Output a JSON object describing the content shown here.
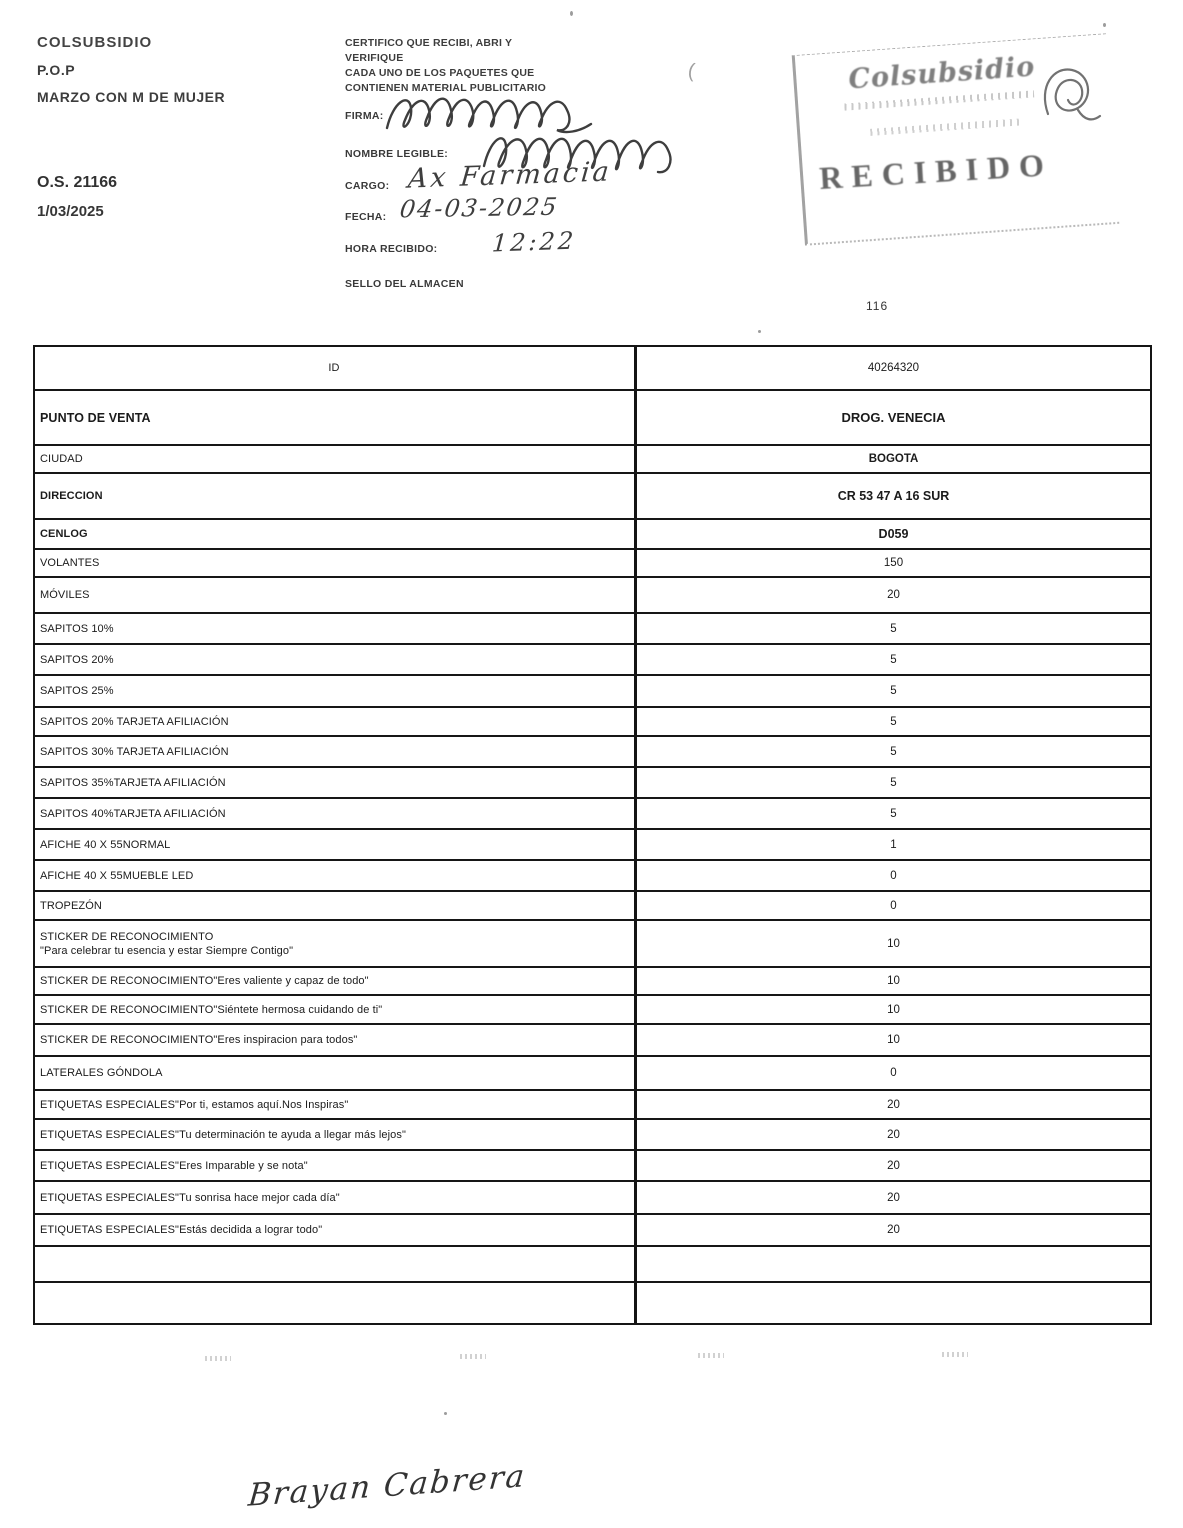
{
  "page_number": "116",
  "header_left": {
    "brand": "COLSUBSIDIO",
    "pop": "P.O.P",
    "campaign": "MARZO CON M DE MUJER",
    "order_number": "O.S. 21166",
    "order_date": "1/03/2025"
  },
  "certification": {
    "statement_lines": [
      "CERTIFICO QUE RECIBI, ABRI Y",
      "VERIFIQUE",
      "CADA  UNO DE LOS PAQUETES QUE",
      "CONTIENEN MATERIAL PUBLICITARIO"
    ],
    "fields": [
      {
        "label": "FIRMA:"
      },
      {
        "label": "NOMBRE LEGIBLE:"
      },
      {
        "label": "CARGO:"
      },
      {
        "label": "FECHA:"
      },
      {
        "label": "HORA RECIBIDO:"
      },
      {
        "label": "SELLO DEL ALMACEN"
      }
    ]
  },
  "handwriting": {
    "cargo": "Ax Farmacia",
    "fecha": "04-03-2025",
    "hora_recibido": "12:22",
    "footer_name": "Brayan Cabrera"
  },
  "stamp": {
    "brand": "Colsubsidio",
    "status": "RECIBIDO"
  },
  "table": {
    "rows": [
      {
        "label": "ID",
        "value": "40264320"
      },
      {
        "label": "PUNTO DE VENTA",
        "value": "DROG. VENECIA"
      },
      {
        "label": "CIUDAD",
        "value": "BOGOTA"
      },
      {
        "label": "DIRECCION",
        "value": "CR 53 47 A 16 SUR"
      },
      {
        "label": "CENLOG",
        "value": "D059"
      },
      {
        "label": "VOLANTES",
        "value": "150"
      },
      {
        "label": "MÓVILES",
        "value": "20"
      },
      {
        "label": "SAPITOS 10%",
        "value": "5"
      },
      {
        "label": "SAPITOS 20%",
        "value": "5"
      },
      {
        "label": "SAPITOS 25%",
        "value": "5"
      },
      {
        "label": "SAPITOS 20% TARJETA AFILIACIÓN",
        "value": "5"
      },
      {
        "label": "SAPITOS 30% TARJETA AFILIACIÓN",
        "value": "5"
      },
      {
        "label": "SAPITOS 35%TARJETA AFILIACIÓN",
        "value": "5"
      },
      {
        "label": "SAPITOS 40%TARJETA AFILIACIÓN",
        "value": "5"
      },
      {
        "label": "AFICHE 40 X 55NORMAL",
        "value": "1"
      },
      {
        "label": "AFICHE 40 X 55MUEBLE LED",
        "value": "0"
      },
      {
        "label": "TROPEZÓN",
        "value": "0"
      },
      {
        "label": "STICKER DE RECONOCIMIENTO",
        "label2": "\"Para celebrar tu esencia y estar Siempre Contigo\"",
        "value": "10"
      },
      {
        "label": "STICKER DE RECONOCIMIENTO\"Eres valiente y capaz de todo\"",
        "value": "10"
      },
      {
        "label": "STICKER DE RECONOCIMIENTO\"Siéntete hermosa cuidando de ti\"",
        "value": "10"
      },
      {
        "label": "STICKER DE RECONOCIMIENTO\"Eres inspiracion para todos\"",
        "value": "10"
      },
      {
        "label": "LATERALES GÓNDOLA",
        "value": "0"
      },
      {
        "label": "ETIQUETAS ESPECIALES\"Por ti, estamos aquí.Nos Inspiras\"",
        "value": "20"
      },
      {
        "label": "ETIQUETAS ESPECIALES\"Tu determinación te ayuda a llegar más lejos\"",
        "value": "20"
      },
      {
        "label": "ETIQUETAS ESPECIALES\"Eres Imparable y se nota\"",
        "value": "20"
      },
      {
        "label": "ETIQUETAS ESPECIALES\"Tu sonrisa hace mejor cada día\"",
        "value": "20"
      },
      {
        "label": "ETIQUETAS ESPECIALES\"Estás decidida a lograr todo\"",
        "value": "20"
      },
      {
        "label": "",
        "value": ""
      },
      {
        "label": "",
        "value": ""
      }
    ]
  }
}
